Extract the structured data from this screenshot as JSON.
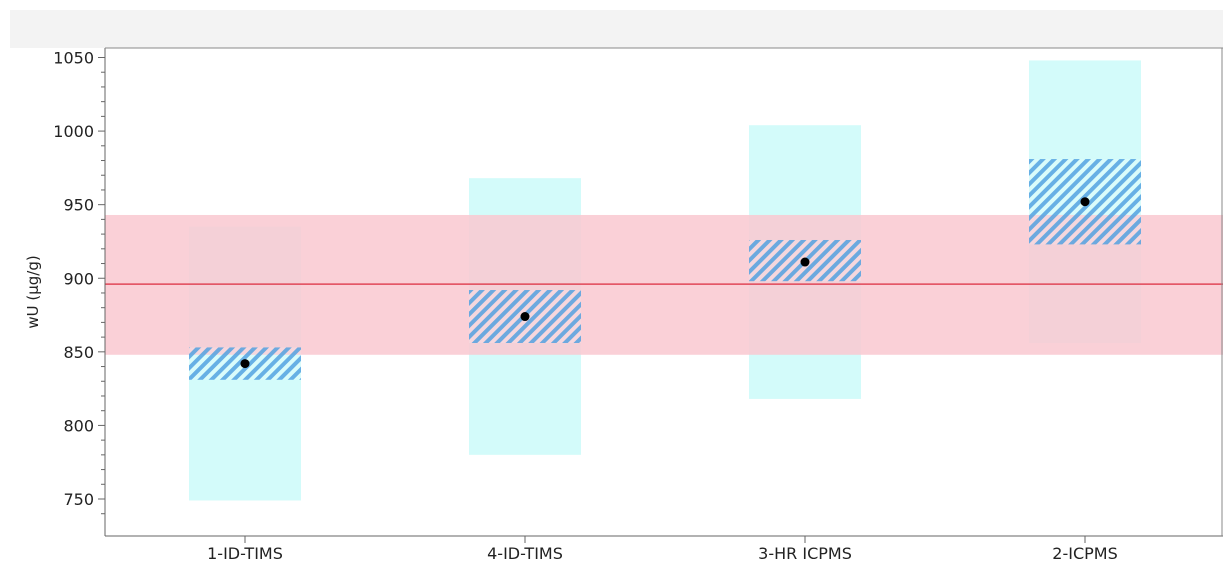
{
  "chart_data": {
    "type": "scatter",
    "ylabel": "wU (µg/g)",
    "xlabel": "",
    "ylim": [
      730,
      1058
    ],
    "yticks": [
      750,
      800,
      850,
      900,
      950,
      1000,
      1050
    ],
    "grid": false,
    "categories": [
      "1-ID-TIMS",
      "4-ID-TIMS",
      "3-HR ICPMS",
      "2-ICPMS"
    ],
    "points": [
      {
        "category": "1-ID-TIMS",
        "value": 842,
        "expanded_range": [
          749,
          935
        ],
        "standard_range": [
          831,
          853
        ]
      },
      {
        "category": "4-ID-TIMS",
        "value": 874,
        "expanded_range": [
          780,
          968
        ],
        "standard_range": [
          856,
          892
        ]
      },
      {
        "category": "3-HR ICPMS",
        "value": 911,
        "expanded_range": [
          818,
          1004
        ],
        "standard_range": [
          898,
          926
        ]
      },
      {
        "category": "2-ICPMS",
        "value": 952,
        "expanded_range": [
          856,
          1048
        ],
        "standard_range": [
          923,
          981
        ]
      }
    ],
    "reference": {
      "value": 896,
      "band": [
        848,
        943
      ]
    },
    "colors": {
      "expanded_fill": "#d3fbfa",
      "standard_hatch": "#4a9ee0",
      "reference_band": "#f9c8d0",
      "reference_line": "#e04657",
      "point": "#000000",
      "plot_background": "#f3f3f3"
    }
  }
}
